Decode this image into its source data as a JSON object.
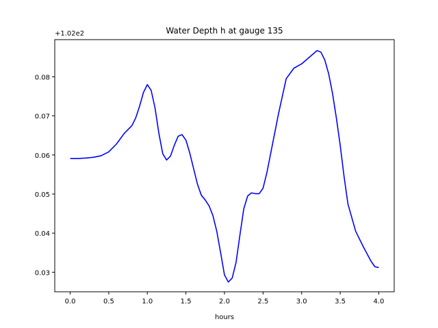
{
  "chart_data": {
    "type": "line",
    "title": "Water Depth h at gauge 135",
    "xlabel": "hours",
    "ylabel": "",
    "y_offset_label": "+1.02e2",
    "y_offset": 102.0,
    "xlim": [
      -0.2,
      4.2
    ],
    "ylim": [
      0.025,
      0.0895
    ],
    "x_ticks": [
      0.0,
      0.5,
      1.0,
      1.5,
      2.0,
      2.5,
      3.0,
      3.5,
      4.0
    ],
    "x_tick_labels": [
      "0.0",
      "0.5",
      "1.0",
      "1.5",
      "2.0",
      "2.5",
      "3.0",
      "3.5",
      "4.0"
    ],
    "y_ticks": [
      0.03,
      0.04,
      0.05,
      0.06,
      0.07,
      0.08
    ],
    "y_tick_labels": [
      "0.03",
      "0.04",
      "0.05",
      "0.06",
      "0.07",
      "0.08"
    ],
    "grid": false,
    "series": [
      {
        "color": "#0000ff",
        "x": [
          0.0,
          0.1,
          0.2,
          0.3,
          0.4,
          0.5,
          0.6,
          0.7,
          0.8,
          0.85,
          0.9,
          0.95,
          1.0,
          1.05,
          1.1,
          1.15,
          1.2,
          1.25,
          1.3,
          1.35,
          1.4,
          1.45,
          1.5,
          1.55,
          1.6,
          1.65,
          1.7,
          1.75,
          1.8,
          1.85,
          1.9,
          1.95,
          2.0,
          2.05,
          2.1,
          2.15,
          2.2,
          2.25,
          2.3,
          2.35,
          2.4,
          2.45,
          2.5,
          2.55,
          2.6,
          2.7,
          2.8,
          2.9,
          3.0,
          3.1,
          3.2,
          3.25,
          3.3,
          3.35,
          3.4,
          3.45,
          3.5,
          3.55,
          3.6,
          3.7,
          3.8,
          3.9,
          3.95,
          4.0
        ],
        "y": [
          0.0591,
          0.0591,
          0.0592,
          0.0594,
          0.0598,
          0.0608,
          0.0628,
          0.0655,
          0.0675,
          0.0695,
          0.0725,
          0.076,
          0.078,
          0.0765,
          0.072,
          0.0655,
          0.0603,
          0.0587,
          0.0597,
          0.0625,
          0.0648,
          0.0652,
          0.0638,
          0.0605,
          0.0565,
          0.0525,
          0.0497,
          0.0485,
          0.047,
          0.0445,
          0.0405,
          0.035,
          0.0293,
          0.0275,
          0.0285,
          0.0325,
          0.0395,
          0.0462,
          0.0495,
          0.0503,
          0.0501,
          0.0501,
          0.0515,
          0.0555,
          0.0605,
          0.0705,
          0.0795,
          0.0822,
          0.0833,
          0.085,
          0.0867,
          0.0863,
          0.0843,
          0.0808,
          0.0758,
          0.0695,
          0.0625,
          0.0545,
          0.0475,
          0.0405,
          0.0365,
          0.0328,
          0.0314,
          0.0312
        ]
      }
    ]
  }
}
